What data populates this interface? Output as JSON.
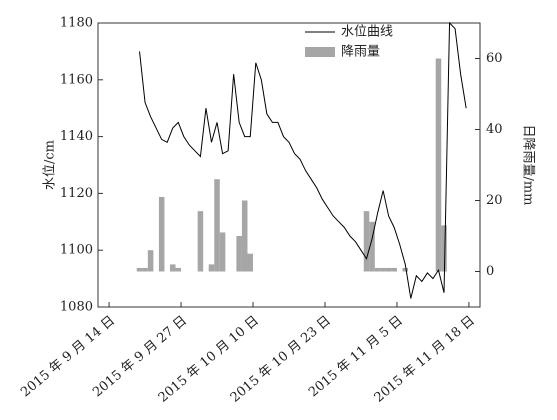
{
  "chart_data": {
    "type": "line-bar",
    "ylabel": "水位/cm",
    "y2label": "日降雨量/mm",
    "xlim": [
      "2015-09-12",
      "2015-11-20"
    ],
    "xticks": [
      {
        "value": "2015-09-14",
        "label": "2015 年 9 月 14 日"
      },
      {
        "value": "2015-09-27",
        "label": "2015 年 9 月 27 日"
      },
      {
        "value": "2015-10-10",
        "label": "2015 年 10 月 10 日"
      },
      {
        "value": "2015-10-23",
        "label": "2015 年 10 月 23 日"
      },
      {
        "value": "2015-11-05",
        "label": "2015 年 11 月 5 日"
      },
      {
        "value": "2015-11-18",
        "label": "2015 年 11 月 18 日"
      }
    ],
    "ylim": [
      1080,
      1180
    ],
    "yticks": [
      1080,
      1100,
      1120,
      1140,
      1160,
      1180
    ],
    "y2lim": [
      -10,
      70
    ],
    "y2ticks": [
      0,
      20,
      40,
      60
    ],
    "legend": "upper right",
    "series": [
      {
        "name": "水位曲线",
        "type": "line",
        "color": "#000000",
        "x": [
          "2015-09-19",
          "2015-09-20",
          "2015-09-21",
          "2015-09-22",
          "2015-09-23",
          "2015-09-24",
          "2015-09-25",
          "2015-09-26",
          "2015-09-27",
          "2015-09-28",
          "2015-09-29",
          "2015-09-30",
          "2015-10-01",
          "2015-10-02",
          "2015-10-03",
          "2015-10-04",
          "2015-10-05",
          "2015-10-06",
          "2015-10-07",
          "2015-10-08",
          "2015-10-09",
          "2015-10-10",
          "2015-10-11",
          "2015-10-12",
          "2015-10-13",
          "2015-10-14",
          "2015-10-15",
          "2015-10-16",
          "2015-10-17",
          "2015-10-18",
          "2015-10-19",
          "2015-10-20",
          "2015-10-21",
          "2015-10-22",
          "2015-10-23",
          "2015-10-24",
          "2015-10-25",
          "2015-10-26",
          "2015-10-27",
          "2015-10-28",
          "2015-10-29",
          "2015-10-30",
          "2015-10-31",
          "2015-11-01",
          "2015-11-02",
          "2015-11-03",
          "2015-11-04",
          "2015-11-05",
          "2015-11-06",
          "2015-11-07",
          "2015-11-08",
          "2015-11-09",
          "2015-11-10",
          "2015-11-11",
          "2015-11-12",
          "2015-11-13",
          "2015-11-14",
          "2015-11-15",
          "2015-11-16",
          "2015-11-17"
        ],
        "values": [
          1170,
          1152,
          1147,
          1143,
          1139,
          1138,
          1143,
          1145,
          1140,
          1137,
          1135,
          1133,
          1150,
          1138,
          1145,
          1134,
          1135,
          1162,
          1145,
          1140,
          1140,
          1166,
          1160,
          1148,
          1145,
          1145,
          1140,
          1138,
          1134,
          1132,
          1128,
          1125,
          1122,
          1118,
          1115,
          1112,
          1110,
          1108,
          1105,
          1103,
          1100,
          1097,
          1104,
          1113,
          1121,
          1112,
          1108,
          1102,
          1095,
          1083,
          1091,
          1089,
          1092,
          1090,
          1093,
          1085,
          1180,
          1178,
          1162,
          1150
        ]
      },
      {
        "name": "降雨量",
        "type": "bar",
        "axis": "y2",
        "color": "#a6a6a6",
        "x": [
          "2015-09-19",
          "2015-09-20",
          "2015-09-21",
          "2015-09-23",
          "2015-09-25",
          "2015-09-26",
          "2015-09-30",
          "2015-10-02",
          "2015-10-03",
          "2015-10-04",
          "2015-10-07",
          "2015-10-08",
          "2015-10-09",
          "2015-10-30",
          "2015-10-31",
          "2015-11-01",
          "2015-11-02",
          "2015-11-03",
          "2015-11-04",
          "2015-11-06",
          "2015-11-12",
          "2015-11-13"
        ],
        "values": [
          1,
          1,
          6,
          21,
          2,
          1,
          17,
          2,
          26,
          11,
          10,
          20,
          5,
          17,
          14,
          1,
          1,
          1,
          1,
          1,
          60,
          13
        ]
      }
    ]
  }
}
